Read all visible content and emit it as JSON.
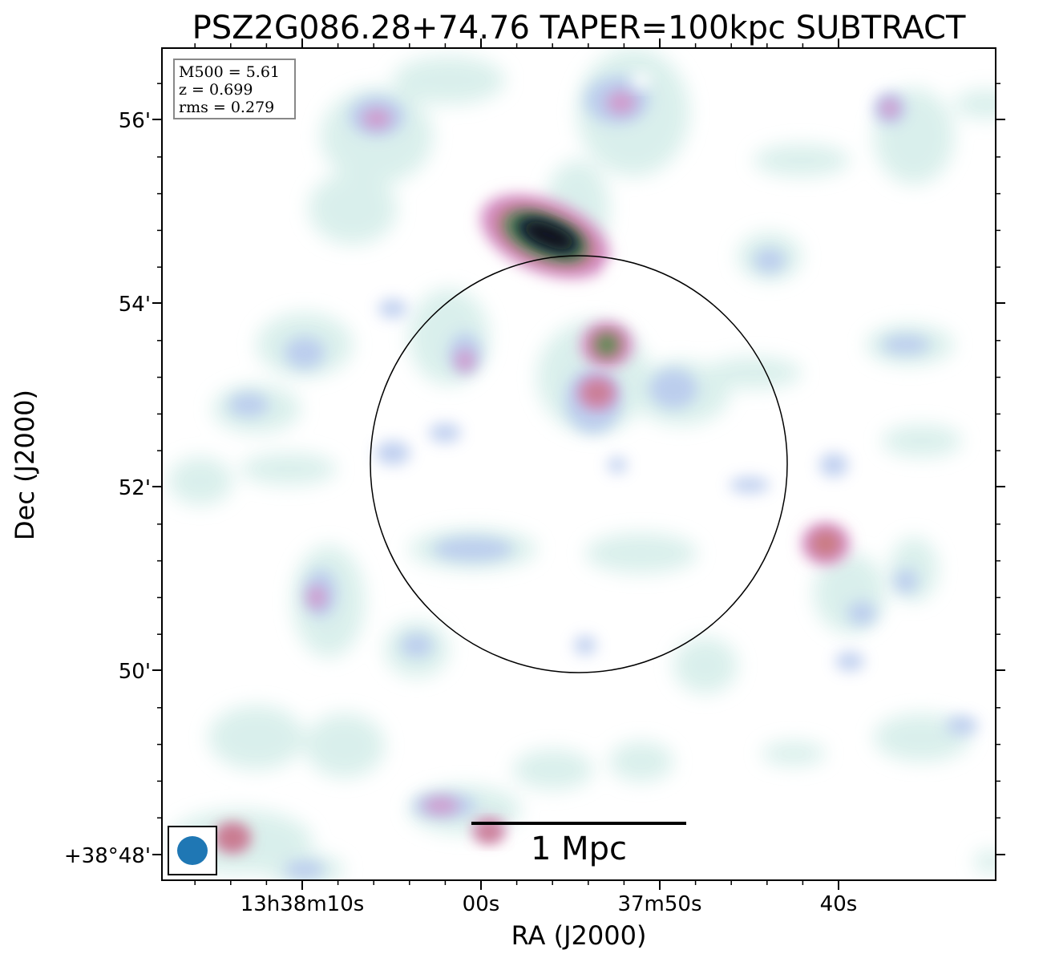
{
  "figure": {
    "title": "PSZ2G086.28+74.76 TAPER=100kpc SUBTRACT",
    "xlabel": "RA (J2000)",
    "ylabel": "Dec (J2000)",
    "info": {
      "m500": "M500 = 5.61",
      "z": "z = 0.699",
      "rms": "rms = 0.279"
    },
    "scalebar_label": "1 Mpc",
    "beam_color": "#1f77b4",
    "colormap": [
      "#ffffff",
      "#d9f0ec",
      "#b8d6ee",
      "#c8a8e6",
      "#d98cc0",
      "#c97a8e",
      "#6fa36b",
      "#2e6b4a",
      "#1e2a3a",
      "#0b0b1a"
    ]
  },
  "axes": {
    "x_ticks": [
      "13h38m10s",
      "00s",
      "37m50s",
      "40s"
    ],
    "y_ticks": [
      "56'",
      "54'",
      "52'",
      "50'",
      "+38°48'"
    ]
  }
}
